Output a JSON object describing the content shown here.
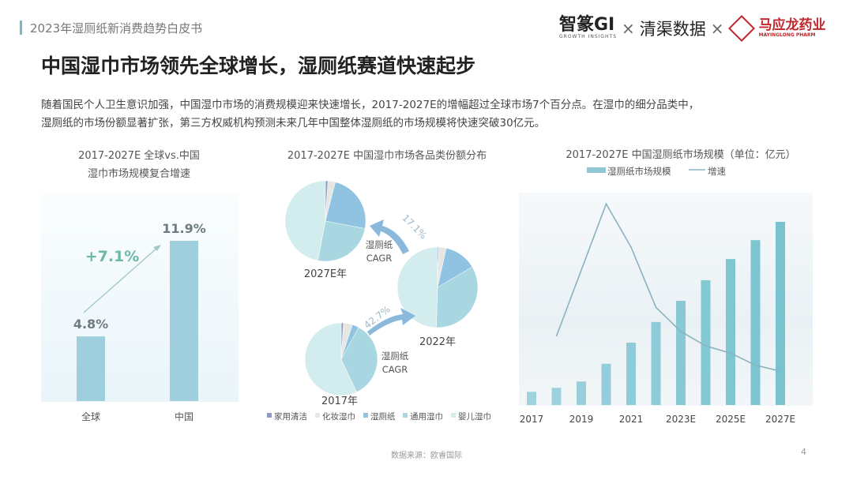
{
  "header": {
    "title": "2023年湿厕纸新消费趋势白皮书",
    "logos": {
      "brand1": "智篆GI",
      "brand1_sub": "GROWTH INSIGHTS",
      "brand2": "清渠数据",
      "brand3": "马应龙药业",
      "brand3_sub": "MAYINGLONG PHARM",
      "separator": "×"
    }
  },
  "page_title": "中国湿巾市场领先全球增长，湿厕纸赛道快速起步",
  "paragraph": [
    "随着国民个人卫生意识加强，中国湿巾市场的消费规模迎来快速增长，2017-2027E的增幅超过全球市场7个百分点。在湿巾的细分品类中，",
    "湿厕纸的市场份额显著扩张，第三方权威机构预测未来几年中国整体湿厕纸的市场规模将快速突破30亿元。"
  ],
  "chart_data": [
    {
      "type": "bar",
      "title_lines": [
        "2017-2027E 全球vs.中国",
        "湿巾市场规模复合增速"
      ],
      "categories": [
        "全球",
        "中国"
      ],
      "values": [
        4.8,
        11.9
      ],
      "data_labels": [
        "4.8%",
        "11.9%"
      ],
      "annotation": "+7.1%",
      "color": "#9fcfdc",
      "annotation_color": "#6cb8a9"
    },
    {
      "type": "pie",
      "title": "2017-2027E 中国湿巾市场各品类份额分布",
      "legend": [
        "家用清洁",
        "化妆湿巾",
        "湿厕纸",
        "通用湿巾",
        "婴儿湿巾"
      ],
      "colors": [
        "#8d9cc4",
        "#e6e6e2",
        "#90c2e2",
        "#a9d7e1",
        "#d3edef"
      ],
      "pies": [
        {
          "label": "2017年",
          "values": [
            1,
            4,
            3,
            35,
            57
          ]
        },
        {
          "label": "2022年",
          "values": [
            0.5,
            3,
            13,
            34,
            49.5
          ]
        },
        {
          "label": "2027E年",
          "values": [
            1,
            3,
            24,
            25,
            47
          ]
        }
      ],
      "annotations": [
        {
          "text": "42.7%",
          "caption": [
            "湿厕纸",
            "CAGR"
          ]
        },
        {
          "text": "17.1%",
          "caption": [
            "湿厕纸",
            "CAGR"
          ]
        }
      ]
    },
    {
      "type": "bar+line",
      "title": "2017-2027E 中国湿厕纸市场规模（单位：亿元）",
      "legend": [
        "湿厕纸市场规模",
        "增速"
      ],
      "x": [
        "2017",
        "2018",
        "2019",
        "2020",
        "2021",
        "2022",
        "2023E",
        "2024E",
        "2025E",
        "2026E",
        "2027E"
      ],
      "tick_labels": [
        "2017",
        "2019",
        "2021",
        "2023E",
        "2025E",
        "2027E"
      ],
      "series": [
        {
          "name": "湿厕纸市场规模",
          "type": "bar",
          "values": [
            2.3,
            3.0,
            4.1,
            7.2,
            10.9,
            14.5,
            18.2,
            21.8,
            25.5,
            28.8,
            32
          ]
        },
        {
          "name": "增速",
          "type": "line",
          "values": [
            null,
            21,
            null,
            76,
            58,
            33,
            23,
            17,
            14,
            9,
            6.5
          ]
        }
      ],
      "bar_color": "#8fc8d4",
      "line_color": "#8ab3c0"
    }
  ],
  "footer": {
    "source": "数据来源：欧睿国际",
    "page": "4"
  }
}
